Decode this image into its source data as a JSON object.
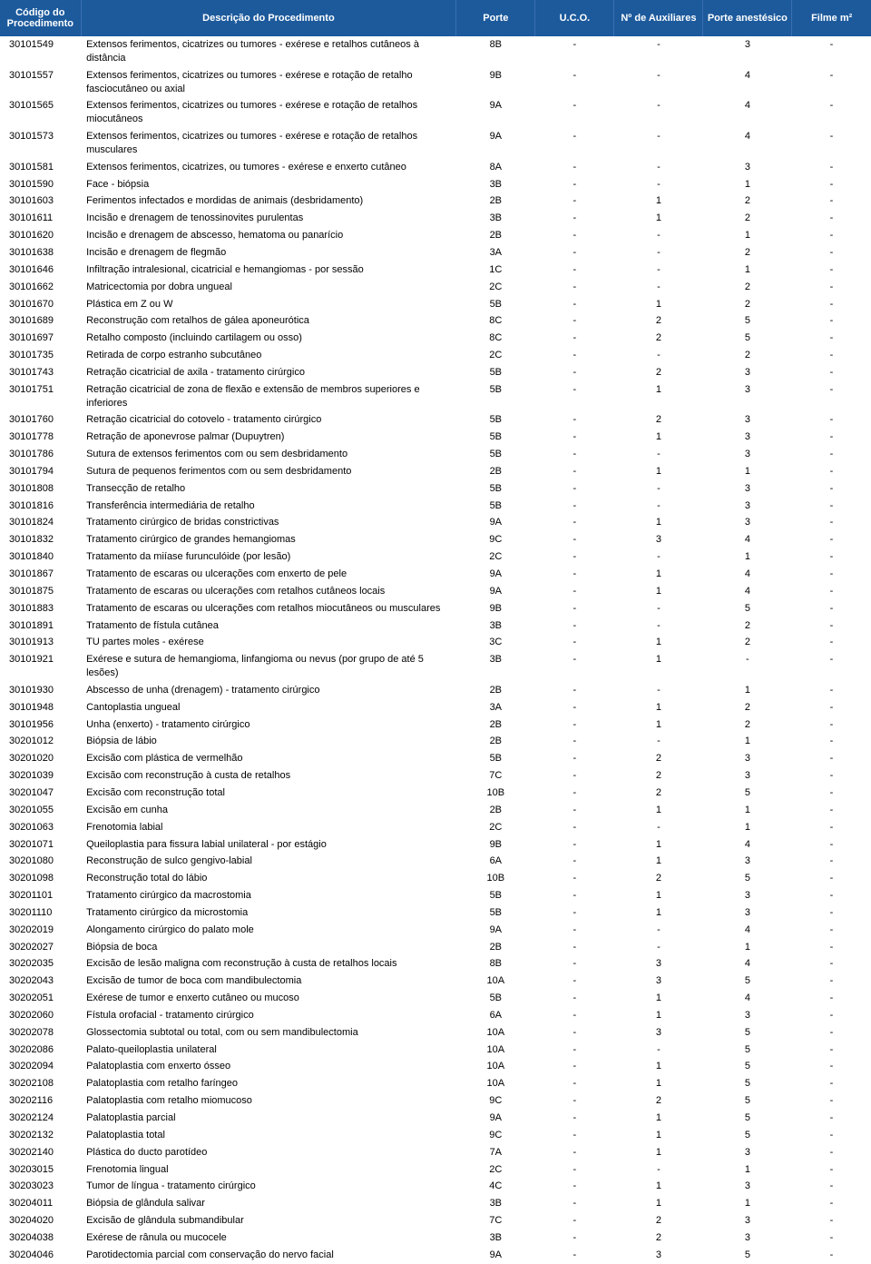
{
  "headers": {
    "codigo": "Código do Procedimento",
    "descricao": "Descrição do Procedimento",
    "porte": "Porte",
    "uco": "U.C.O.",
    "aux": "Nº de Auxiliares",
    "pa": "Porte anestésico",
    "filme": "Filme m²"
  },
  "rows": [
    {
      "codigo": "30101549",
      "desc": "Extensos ferimentos, cicatrizes ou tumores - exérese e retalhos cutâneos à distância",
      "porte": "8B",
      "uco": "-",
      "aux": "-",
      "pa": "3",
      "filme": "-"
    },
    {
      "codigo": "30101557",
      "desc": "Extensos ferimentos, cicatrizes ou tumores - exérese e rotação de retalho fasciocutâneo ou axial",
      "porte": "9B",
      "uco": "-",
      "aux": "-",
      "pa": "4",
      "filme": "-"
    },
    {
      "codigo": "30101565",
      "desc": "Extensos ferimentos, cicatrizes ou tumores - exérese e rotação de retalhos miocutâneos",
      "porte": "9A",
      "uco": "-",
      "aux": "-",
      "pa": "4",
      "filme": "-"
    },
    {
      "codigo": "30101573",
      "desc": "Extensos ferimentos, cicatrizes ou tumores - exérese e rotação de retalhos musculares",
      "porte": "9A",
      "uco": "-",
      "aux": "-",
      "pa": "4",
      "filme": "-"
    },
    {
      "codigo": "30101581",
      "desc": "Extensos ferimentos, cicatrizes, ou tumores - exérese e enxerto cutâneo",
      "porte": "8A",
      "uco": "-",
      "aux": "-",
      "pa": "3",
      "filme": "-"
    },
    {
      "codigo": "30101590",
      "desc": "Face - biópsia",
      "porte": "3B",
      "uco": "-",
      "aux": "-",
      "pa": "1",
      "filme": "-"
    },
    {
      "codigo": "30101603",
      "desc": "Ferimentos infectados e mordidas de animais (desbridamento)",
      "porte": "2B",
      "uco": "-",
      "aux": "1",
      "pa": "2",
      "filme": "-"
    },
    {
      "codigo": "30101611",
      "desc": "Incisão e drenagem de tenossinovites purulentas",
      "porte": "3B",
      "uco": "-",
      "aux": "1",
      "pa": "2",
      "filme": "-"
    },
    {
      "codigo": "30101620",
      "desc": "Incisão e drenagem de abscesso, hematoma ou panarício",
      "porte": "2B",
      "uco": "-",
      "aux": "-",
      "pa": "1",
      "filme": "-"
    },
    {
      "codigo": "30101638",
      "desc": "Incisão e drenagem de flegmão",
      "porte": "3A",
      "uco": "-",
      "aux": "-",
      "pa": "2",
      "filme": "-"
    },
    {
      "codigo": "30101646",
      "desc": "Infiltração  intralesional, cicatricial e hemangiomas - por sessão",
      "porte": "1C",
      "uco": "-",
      "aux": "-",
      "pa": "1",
      "filme": "-"
    },
    {
      "codigo": "30101662",
      "desc": "Matricectomia por dobra ungueal",
      "porte": "2C",
      "uco": "-",
      "aux": "-",
      "pa": "2",
      "filme": "-"
    },
    {
      "codigo": "30101670",
      "desc": "Plástica em Z ou W",
      "porte": "5B",
      "uco": "-",
      "aux": "1",
      "pa": "2",
      "filme": "-"
    },
    {
      "codigo": "30101689",
      "desc": "Reconstrução com retalhos de gálea aponeurótica",
      "porte": "8C",
      "uco": "-",
      "aux": "2",
      "pa": "5",
      "filme": "-"
    },
    {
      "codigo": "30101697",
      "desc": "Retalho composto (incluindo cartilagem ou osso)",
      "porte": "8C",
      "uco": "-",
      "aux": "2",
      "pa": "5",
      "filme": "-"
    },
    {
      "codigo": "30101735",
      "desc": "Retirada de corpo estranho subcutâneo",
      "porte": "2C",
      "uco": "-",
      "aux": "-",
      "pa": "2",
      "filme": "-"
    },
    {
      "codigo": "30101743",
      "desc": "Retração cicatricial de axila - tratamento cirúrgico",
      "porte": "5B",
      "uco": "-",
      "aux": "2",
      "pa": "3",
      "filme": "-"
    },
    {
      "codigo": "30101751",
      "desc": "Retração cicatricial de zona de flexão e extensão de membros superiores e inferiores",
      "porte": "5B",
      "uco": "-",
      "aux": "1",
      "pa": "3",
      "filme": "-"
    },
    {
      "codigo": "30101760",
      "desc": "Retração cicatricial do cotovelo - tratamento cirúrgico",
      "porte": "5B",
      "uco": "-",
      "aux": "2",
      "pa": "3",
      "filme": "-"
    },
    {
      "codigo": "30101778",
      "desc": "Retração de aponevrose palmar (Dupuytren)",
      "porte": "5B",
      "uco": "-",
      "aux": "1",
      "pa": "3",
      "filme": "-"
    },
    {
      "codigo": "30101786",
      "desc": "Sutura de extensos ferimentos com ou sem desbridamento",
      "porte": "5B",
      "uco": "-",
      "aux": "-",
      "pa": "3",
      "filme": "-"
    },
    {
      "codigo": "30101794",
      "desc": "Sutura de pequenos ferimentos com ou sem desbridamento",
      "porte": "2B",
      "uco": "-",
      "aux": "1",
      "pa": "1",
      "filme": "-"
    },
    {
      "codigo": "30101808",
      "desc": "Transecção de retalho",
      "porte": "5B",
      "uco": "-",
      "aux": "-",
      "pa": "3",
      "filme": "-"
    },
    {
      "codigo": "30101816",
      "desc": "Transferência intermediária de retalho",
      "porte": "5B",
      "uco": "-",
      "aux": "-",
      "pa": "3",
      "filme": "-"
    },
    {
      "codigo": "30101824",
      "desc": "Tratamento cirúrgico de bridas constrictivas",
      "porte": "9A",
      "uco": "-",
      "aux": "1",
      "pa": "3",
      "filme": "-"
    },
    {
      "codigo": "30101832",
      "desc": "Tratamento cirúrgico de grandes hemangiomas",
      "porte": "9C",
      "uco": "-",
      "aux": "3",
      "pa": "4",
      "filme": "-"
    },
    {
      "codigo": "30101840",
      "desc": "Tratamento da miíase furunculóide (por lesão)",
      "porte": "2C",
      "uco": "-",
      "aux": "-",
      "pa": "1",
      "filme": "-"
    },
    {
      "codigo": "30101867",
      "desc": "Tratamento de escaras ou ulcerações com enxerto de pele",
      "porte": "9A",
      "uco": "-",
      "aux": "1",
      "pa": "4",
      "filme": "-"
    },
    {
      "codigo": "30101875",
      "desc": "Tratamento de escaras ou ulcerações com retalhos cutâneos locais",
      "porte": "9A",
      "uco": "-",
      "aux": "1",
      "pa": "4",
      "filme": "-"
    },
    {
      "codigo": "30101883",
      "desc": "Tratamento de escaras ou ulcerações com retalhos miocutâneos ou musculares",
      "porte": "9B",
      "uco": "-",
      "aux": "-",
      "pa": "5",
      "filme": "-"
    },
    {
      "codigo": "30101891",
      "desc": "Tratamento de fístula cutânea",
      "porte": "3B",
      "uco": "-",
      "aux": "-",
      "pa": "2",
      "filme": "-"
    },
    {
      "codigo": "30101913",
      "desc": "TU partes moles - exérese",
      "porte": "3C",
      "uco": "-",
      "aux": "1",
      "pa": "2",
      "filme": "-"
    },
    {
      "codigo": "30101921",
      "desc": "Exérese e sutura de hemangioma, linfangioma ou nevus (por grupo de até 5 lesões)",
      "porte": "3B",
      "uco": "-",
      "aux": "1",
      "pa": "-",
      "filme": "-"
    },
    {
      "codigo": "30101930",
      "desc": "Abscesso de unha (drenagem) - tratamento cirúrgico",
      "porte": "2B",
      "uco": "-",
      "aux": "-",
      "pa": "1",
      "filme": "-"
    },
    {
      "codigo": "30101948",
      "desc": "Cantoplastia ungueal",
      "porte": "3A",
      "uco": "-",
      "aux": "1",
      "pa": "2",
      "filme": "-"
    },
    {
      "codigo": "30101956",
      "desc": "Unha (enxerto) - tratamento cirúrgico",
      "porte": "2B",
      "uco": "-",
      "aux": "1",
      "pa": "2",
      "filme": "-"
    },
    {
      "codigo": "30201012",
      "desc": "Biópsia de lábio",
      "porte": "2B",
      "uco": "-",
      "aux": "-",
      "pa": "1",
      "filme": "-"
    },
    {
      "codigo": "30201020",
      "desc": "Excisão com plástica de vermelhão",
      "porte": "5B",
      "uco": "-",
      "aux": "2",
      "pa": "3",
      "filme": "-"
    },
    {
      "codigo": "30201039",
      "desc": "Excisão com reconstrução à custa de retalhos",
      "porte": "7C",
      "uco": "-",
      "aux": "2",
      "pa": "3",
      "filme": "-"
    },
    {
      "codigo": "30201047",
      "desc": "Excisão com reconstrução total",
      "porte": "10B",
      "uco": "-",
      "aux": "2",
      "pa": "5",
      "filme": "-"
    },
    {
      "codigo": "30201055",
      "desc": "Excisão em cunha",
      "porte": "2B",
      "uco": "-",
      "aux": "1",
      "pa": "1",
      "filme": "-"
    },
    {
      "codigo": "30201063",
      "desc": "Frenotomia labial",
      "porte": "2C",
      "uco": "-",
      "aux": "-",
      "pa": "1",
      "filme": "-"
    },
    {
      "codigo": "30201071",
      "desc": "Queiloplastia para fissura labial unilateral - por estágio",
      "porte": "9B",
      "uco": "-",
      "aux": "1",
      "pa": "4",
      "filme": "-"
    },
    {
      "codigo": "30201080",
      "desc": "Reconstrução de sulco gengivo-labial",
      "porte": "6A",
      "uco": "-",
      "aux": "1",
      "pa": "3",
      "filme": "-"
    },
    {
      "codigo": "30201098",
      "desc": "Reconstrução total do lábio",
      "porte": "10B",
      "uco": "-",
      "aux": "2",
      "pa": "5",
      "filme": "-"
    },
    {
      "codigo": "30201101",
      "desc": "Tratamento cirúrgico da macrostomia",
      "porte": "5B",
      "uco": "-",
      "aux": "1",
      "pa": "3",
      "filme": "-"
    },
    {
      "codigo": "30201110",
      "desc": "Tratamento cirúrgico da microstomia",
      "porte": "5B",
      "uco": "-",
      "aux": "1",
      "pa": "3",
      "filme": "-"
    },
    {
      "codigo": "30202019",
      "desc": "Alongamento cirúrgico do palato mole",
      "porte": "9A",
      "uco": "-",
      "aux": "-",
      "pa": "4",
      "filme": "-"
    },
    {
      "codigo": "30202027",
      "desc": "Biópsia de boca",
      "porte": "2B",
      "uco": "-",
      "aux": "-",
      "pa": "1",
      "filme": "-"
    },
    {
      "codigo": "30202035",
      "desc": "Excisão de lesão maligna com reconstrução à custa de retalhos locais",
      "porte": "8B",
      "uco": "-",
      "aux": "3",
      "pa": "4",
      "filme": "-"
    },
    {
      "codigo": "30202043",
      "desc": "Excisão de tumor de boca com mandibulectomia",
      "porte": "10A",
      "uco": "-",
      "aux": "3",
      "pa": "5",
      "filme": "-"
    },
    {
      "codigo": "30202051",
      "desc": "Exérese de tumor e enxerto cutâneo ou mucoso",
      "porte": "5B",
      "uco": "-",
      "aux": "1",
      "pa": "4",
      "filme": "-"
    },
    {
      "codigo": "30202060",
      "desc": "Fístula orofacial - tratamento cirúrgico",
      "porte": "6A",
      "uco": "-",
      "aux": "1",
      "pa": "3",
      "filme": "-"
    },
    {
      "codigo": "30202078",
      "desc": "Glossectomia subtotal ou total, com ou sem mandibulectomia",
      "porte": "10A",
      "uco": "-",
      "aux": "3",
      "pa": "5",
      "filme": "-"
    },
    {
      "codigo": "30202086",
      "desc": "Palato-queiloplastia unilateral",
      "porte": "10A",
      "uco": "-",
      "aux": "-",
      "pa": "5",
      "filme": "-"
    },
    {
      "codigo": "30202094",
      "desc": "Palatoplastia com enxerto ósseo",
      "porte": "10A",
      "uco": "-",
      "aux": "1",
      "pa": "5",
      "filme": "-"
    },
    {
      "codigo": "30202108",
      "desc": "Palatoplastia com retalho faríngeo",
      "porte": "10A",
      "uco": "-",
      "aux": "1",
      "pa": "5",
      "filme": "-"
    },
    {
      "codigo": "30202116",
      "desc": "Palatoplastia com retalho miomucoso",
      "porte": "9C",
      "uco": "-",
      "aux": "2",
      "pa": "5",
      "filme": "-"
    },
    {
      "codigo": "30202124",
      "desc": "Palatoplastia parcial",
      "porte": "9A",
      "uco": "-",
      "aux": "1",
      "pa": "5",
      "filme": "-"
    },
    {
      "codigo": "30202132",
      "desc": "Palatoplastia total",
      "porte": "9C",
      "uco": "-",
      "aux": "1",
      "pa": "5",
      "filme": "-"
    },
    {
      "codigo": "30202140",
      "desc": "Plástica do ducto parotídeo",
      "porte": "7A",
      "uco": "-",
      "aux": "1",
      "pa": "3",
      "filme": "-"
    },
    {
      "codigo": "30203015",
      "desc": "Frenotomia lingual",
      "porte": "2C",
      "uco": "-",
      "aux": "-",
      "pa": "1",
      "filme": "-"
    },
    {
      "codigo": "30203023",
      "desc": "Tumor de língua - tratamento cirúrgico",
      "porte": "4C",
      "uco": "-",
      "aux": "1",
      "pa": "3",
      "filme": "-"
    },
    {
      "codigo": "30204011",
      "desc": "Biópsia de glândula salivar",
      "porte": "3B",
      "uco": "-",
      "aux": "1",
      "pa": "1",
      "filme": "-"
    },
    {
      "codigo": "30204020",
      "desc": "Excisão de glândula submandibular",
      "porte": "7C",
      "uco": "-",
      "aux": "2",
      "pa": "3",
      "filme": "-"
    },
    {
      "codigo": "30204038",
      "desc": "Exérese de rânula ou mucocele",
      "porte": "3B",
      "uco": "-",
      "aux": "2",
      "pa": "3",
      "filme": "-"
    },
    {
      "codigo": "30204046",
      "desc": "Parotidectomia parcial com conservação do nervo facial",
      "porte": "9A",
      "uco": "-",
      "aux": "3",
      "pa": "5",
      "filme": "-"
    }
  ]
}
